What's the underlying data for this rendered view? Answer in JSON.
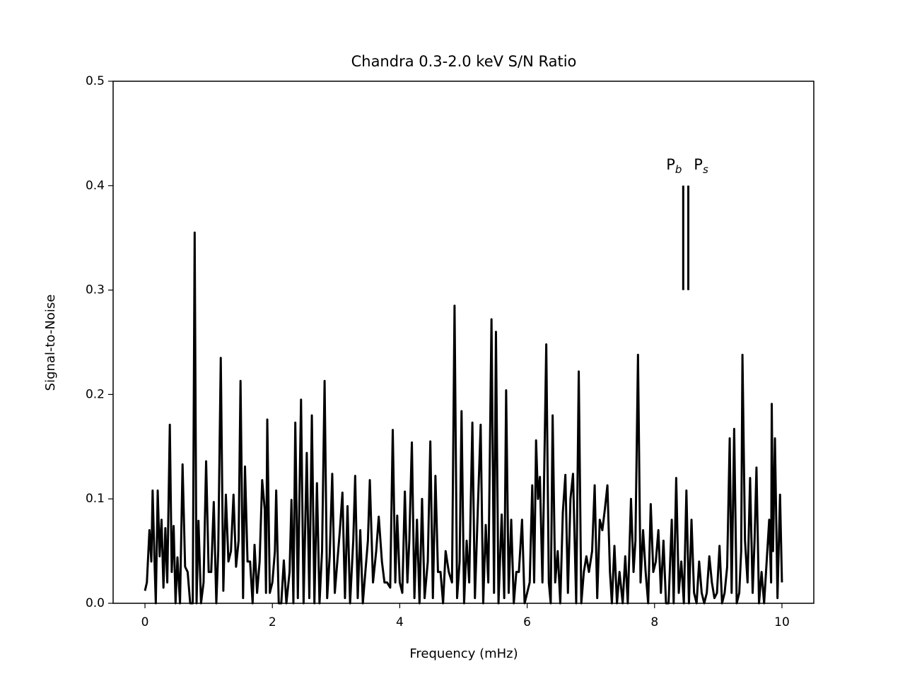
{
  "chart_data": {
    "type": "line",
    "title": "Chandra 0.3-2.0 keV S/N Ratio",
    "xlabel": "Frequency (mHz)",
    "ylabel": "Signal-to-Noise",
    "xlim": [
      -0.5,
      10.5
    ],
    "ylim": [
      0,
      0.5
    ],
    "xticks": [
      0,
      2,
      4,
      6,
      8,
      10
    ],
    "yticks": [
      {
        "value": 0,
        "label": "0.0"
      },
      0.1,
      0.2,
      0.3,
      0.4,
      0.5
    ],
    "color": "#000000",
    "x": [
      0,
      0.03,
      0.07,
      0.1,
      0.12,
      0.15,
      0.17,
      0.2,
      0.23,
      0.26,
      0.29,
      0.32,
      0.35,
      0.39,
      0.42,
      0.45,
      0.48,
      0.51,
      0.55,
      0.59,
      0.63,
      0.67,
      0.71,
      0.75,
      0.78,
      0.81,
      0.84,
      0.88,
      0.92,
      0.96,
      1.0,
      1.04,
      1.08,
      1.12,
      1.15,
      1.19,
      1.23,
      1.27,
      1.31,
      1.35,
      1.39,
      1.43,
      1.47,
      1.5,
      1.54,
      1.57,
      1.61,
      1.65,
      1.69,
      1.72,
      1.76,
      1.8,
      1.84,
      1.88,
      1.9,
      1.92,
      1.96,
      2.0,
      2.04,
      2.06,
      2.1,
      2.14,
      2.18,
      2.22,
      2.27,
      2.3,
      2.33,
      2.36,
      2.4,
      2.45,
      2.49,
      2.54,
      2.58,
      2.62,
      2.66,
      2.7,
      2.74,
      2.78,
      2.82,
      2.86,
      2.9,
      2.94,
      2.98,
      3.02,
      3.06,
      3.1,
      3.14,
      3.18,
      3.22,
      3.27,
      3.3,
      3.34,
      3.38,
      3.42,
      3.46,
      3.5,
      3.53,
      3.58,
      3.63,
      3.67,
      3.72,
      3.76,
      3.8,
      3.85,
      3.89,
      3.93,
      3.96,
      4.0,
      4.04,
      4.08,
      4.12,
      4.15,
      4.19,
      4.23,
      4.27,
      4.31,
      4.35,
      4.39,
      4.44,
      4.48,
      4.52,
      4.56,
      4.6,
      4.64,
      4.68,
      4.72,
      4.77,
      4.82,
      4.86,
      4.9,
      4.94,
      4.97,
      5.01,
      5.05,
      5.09,
      5.14,
      5.18,
      5.22,
      5.27,
      5.31,
      5.35,
      5.39,
      5.44,
      5.48,
      5.51,
      5.55,
      5.6,
      5.64,
      5.67,
      5.71,
      5.75,
      5.79,
      5.83,
      5.87,
      5.92,
      5.96,
      6.0,
      6.04,
      6.08,
      6.11,
      6.14,
      6.17,
      6.2,
      6.24,
      6.3,
      6.34,
      6.37,
      6.4,
      6.44,
      6.48,
      6.52,
      6.56,
      6.6,
      6.64,
      6.68,
      6.72,
      6.77,
      6.81,
      6.85,
      6.89,
      6.93,
      6.97,
      7.02,
      7.06,
      7.1,
      7.14,
      7.18,
      7.22,
      7.26,
      7.3,
      7.33,
      7.37,
      7.41,
      7.45,
      7.5,
      7.54,
      7.58,
      7.63,
      7.67,
      7.7,
      7.74,
      7.78,
      7.82,
      7.86,
      7.9,
      7.94,
      7.98,
      8.02,
      8.06,
      8.1,
      8.14,
      8.18,
      8.22,
      8.27,
      8.3,
      8.34,
      8.38,
      8.42,
      8.46,
      8.5,
      8.54,
      8.58,
      8.62,
      8.66,
      8.7,
      8.74,
      8.78,
      8.82,
      8.86,
      8.9,
      8.94,
      8.98,
      9.02,
      9.06,
      9.1,
      9.14,
      9.18,
      9.21,
      9.25,
      9.29,
      9.33,
      9.36,
      9.38,
      9.42,
      9.46,
      9.5,
      9.54,
      9.57,
      9.6,
      9.64,
      9.68,
      9.72,
      9.76,
      9.8,
      9.83,
      9.84,
      9.86,
      9.89,
      9.93,
      9.97,
      10.0
    ],
    "values": [
      0.012,
      0.02,
      0.07,
      0.04,
      0.108,
      0.04,
      0.0,
      0.108,
      0.045,
      0.08,
      0.015,
      0.072,
      0.02,
      0.171,
      0.03,
      0.074,
      0.0,
      0.044,
      0.0,
      0.133,
      0.035,
      0.03,
      0.0,
      0.0,
      0.355,
      0.0,
      0.079,
      0.0,
      0.02,
      0.136,
      0.03,
      0.03,
      0.097,
      0.0,
      0.05,
      0.235,
      0.012,
      0.104,
      0.04,
      0.05,
      0.104,
      0.035,
      0.06,
      0.213,
      0.005,
      0.131,
      0.04,
      0.04,
      0.0,
      0.056,
      0.01,
      0.04,
      0.118,
      0.09,
      0.01,
      0.176,
      0.01,
      0.02,
      0.05,
      0.108,
      0.0,
      0.0,
      0.041,
      0.0,
      0.03,
      0.099,
      0.0,
      0.173,
      0.005,
      0.195,
      0.0,
      0.144,
      0.005,
      0.18,
      0.0,
      0.115,
      0.0,
      0.05,
      0.213,
      0.005,
      0.045,
      0.124,
      0.01,
      0.04,
      0.07,
      0.106,
      0.005,
      0.093,
      0.0,
      0.06,
      0.122,
      0.005,
      0.07,
      0.0,
      0.03,
      0.06,
      0.118,
      0.02,
      0.05,
      0.083,
      0.04,
      0.02,
      0.02,
      0.015,
      0.166,
      0.02,
      0.084,
      0.02,
      0.01,
      0.107,
      0.02,
      0.06,
      0.154,
      0.005,
      0.08,
      0.0,
      0.1,
      0.005,
      0.04,
      0.155,
      0.005,
      0.122,
      0.03,
      0.03,
      0.0,
      0.05,
      0.03,
      0.02,
      0.285,
      0.005,
      0.04,
      0.184,
      0.0,
      0.06,
      0.02,
      0.173,
      0.005,
      0.08,
      0.171,
      0.0,
      0.075,
      0.02,
      0.272,
      0.01,
      0.26,
      0.0,
      0.085,
      0.005,
      0.204,
      0.01,
      0.08,
      0.0,
      0.03,
      0.03,
      0.08,
      0.0,
      0.01,
      0.02,
      0.113,
      0.02,
      0.156,
      0.1,
      0.121,
      0.02,
      0.248,
      0.02,
      0.0,
      0.18,
      0.02,
      0.05,
      0.0,
      0.087,
      0.123,
      0.01,
      0.1,
      0.124,
      0.0,
      0.222,
      0.0,
      0.03,
      0.045,
      0.03,
      0.05,
      0.113,
      0.005,
      0.08,
      0.07,
      0.09,
      0.113,
      0.03,
      0.0,
      0.055,
      0.0,
      0.03,
      0.0,
      0.045,
      0.0,
      0.1,
      0.03,
      0.06,
      0.238,
      0.02,
      0.07,
      0.03,
      0.0,
      0.095,
      0.03,
      0.04,
      0.07,
      0.01,
      0.06,
      0.0,
      0.0,
      0.08,
      0.0,
      0.12,
      0.01,
      0.04,
      0.0,
      0.108,
      0.0,
      0.08,
      0.01,
      0.0,
      0.04,
      0.01,
      0.0,
      0.01,
      0.045,
      0.02,
      0.005,
      0.01,
      0.055,
      0.0,
      0.01,
      0.035,
      0.158,
      0.01,
      0.167,
      0.0,
      0.01,
      0.05,
      0.238,
      0.06,
      0.02,
      0.12,
      0.01,
      0.06,
      0.13,
      0.0,
      0.03,
      0.0,
      0.04,
      0.08,
      0.02,
      0.191,
      0.05,
      0.158,
      0.005,
      0.104,
      0.02
    ],
    "annotations": [
      {
        "text": "P",
        "subscript": "b",
        "x": 8.45,
        "y": [
          0.3,
          0.4
        ]
      },
      {
        "text": "P",
        "subscript": "s",
        "x": 8.53,
        "y": [
          0.3,
          0.4
        ]
      }
    ]
  }
}
